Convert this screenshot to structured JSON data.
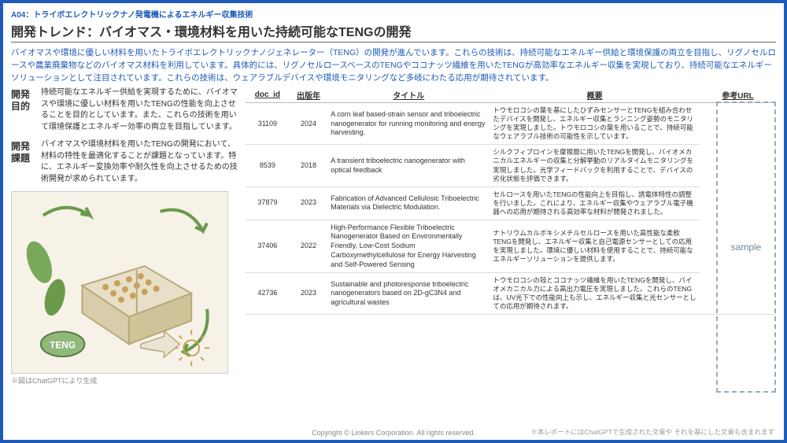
{
  "header": {
    "code": "A04：トライボエレクトリックナノ発電機によるエネルギー収集技術",
    "title": "開発トレンド：バイオマス・環境材料を用いた持続可能なTENGの開発"
  },
  "intro": "バイオマスや環境に優しい材料を用いたトライボエレクトリックナノジェネレーター（TENG）の開発が進んでいます。これらの技術は、持続可能なエネルギー供給と環境保護の両立を目指し、リグノセルロースや農業廃棄物などのバイオマス材料を利用しています。具体的には、リグノセルロースベースのTENGやココナッツ繊維を用いたTENGが高効率なエネルギー収集を実現しており、持続可能なエネルギーソリューションとして注目されています。これらの技術は、ウェアラブルデバイスや環境モニタリングなど多岐にわたる応用が期待されています。",
  "objectives": [
    {
      "label": "開発\n目的",
      "text": "持続可能なエネルギー供給を実現するために、バイオマスや環境に優しい材料を用いたTENGの性能を向上させることを目的としています。また、これらの技術を用いて環境保護とエネルギー効率の両立を目指しています。"
    },
    {
      "label": "開発\n課題",
      "text": "バイオマスや環境材料を用いたTENGの開発において、材料の特性を最適化することが課題となっています。特に、エネルギー変換効率や耐久性を向上させるための技術開発が求められています。"
    }
  ],
  "image_caption": "※図はChatGPTにより生成",
  "table": {
    "headers": [
      "doc_id",
      "出版年",
      "タイトル",
      "概要",
      "参考URL"
    ],
    "rows": [
      {
        "doc_id": "31109",
        "year": "2024",
        "title": "A corn leaf based-strain sensor and triboelectric nanogenerator for running monitoring and energy harvesting.",
        "summary": "トウモロコシの葉を基にしたひずみセンサーとTENGを組み合わせたデバイスを開発し、エネルギー収集とランニング姿勢のモニタリングを実現しました。トウモロコシの葉を用いることで、持続可能なウェアラブル技術の可能性を示しています。"
      },
      {
        "doc_id": "8539",
        "year": "2018",
        "title": "A transient triboelectric nanogenerator with optical feedback",
        "summary": "シルクフィブロインを摩擦層に用いたTENGを開発し、バイオメカニカルエネルギーの収集と分解挙動のリアルタイムモニタリングを実現しました。光学フィードバックを利用することで、デバイスの劣化状態を評価できます。"
      },
      {
        "doc_id": "37879",
        "year": "2023",
        "title": "Fabrication of Advanced Cellulosic Triboelectric Materials via Dielectric Modulation.",
        "summary": "セルロースを用いたTENGの性能向上を目指し、誘電体特性の調整を行いました。これにより、エネルギー収集やウェアラブル電子機器への応用が期待される高効率な材料が開発されました。"
      },
      {
        "doc_id": "37406",
        "year": "2022",
        "title": "High-Performance Flexible Triboelectric Nanogenerator Based on Environmentally Friendly, Low-Cost Sodium Carboxymethylcellulose for Energy Harvesting and Self-Powered Sensing",
        "summary": "ナトリウムカルボキシメチルセルロースを用いた高性能な柔軟TENGを開発し、エネルギー収集と自己電源センサーとしての応用を実現しました。環境に優しい材料を使用することで、持続可能なエネルギーソリューションを提供します。"
      },
      {
        "doc_id": "42736",
        "year": "2023",
        "title": "Sustainable and photoresponse triboelectric nanogenerators based on 2D-gC3N4 and agricultural wastes",
        "summary": "トウモロコシの殻とココナッツ繊維を用いたTENGを開発し、バイオメカニカル力による高出力電圧を実現しました。これらのTENGは、UV光下での性能向上も示し、エネルギー収集と光センサーとしての応用が期待されます。"
      }
    ],
    "sample_label": "sample"
  },
  "footer": {
    "copyright": "Copyright © Linkers Corporation. All rights reserved.",
    "note": "※本レポートにはChatGPTで生成された文章や それを基にした文章も含まれます"
  },
  "colors": {
    "brand_blue": "#1e5bb8",
    "text_gray": "#333333",
    "light_gray": "#888888",
    "border_gray": "#dddddd"
  }
}
